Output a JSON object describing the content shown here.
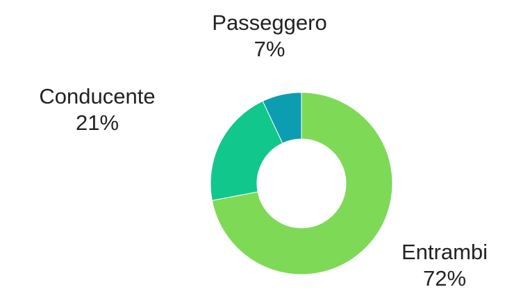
{
  "chart_data": {
    "type": "pie",
    "donut": true,
    "title": "",
    "slices": [
      {
        "label": "Entrambi",
        "value": 72,
        "value_label": "72%",
        "color": "#7ed957"
      },
      {
        "label": "Conducente",
        "value": 21,
        "value_label": "21%",
        "color": "#12c78b"
      },
      {
        "label": "Passeggero",
        "value": 7,
        "value_label": "7%",
        "color": "#0d9db0"
      }
    ],
    "legend": "none"
  }
}
